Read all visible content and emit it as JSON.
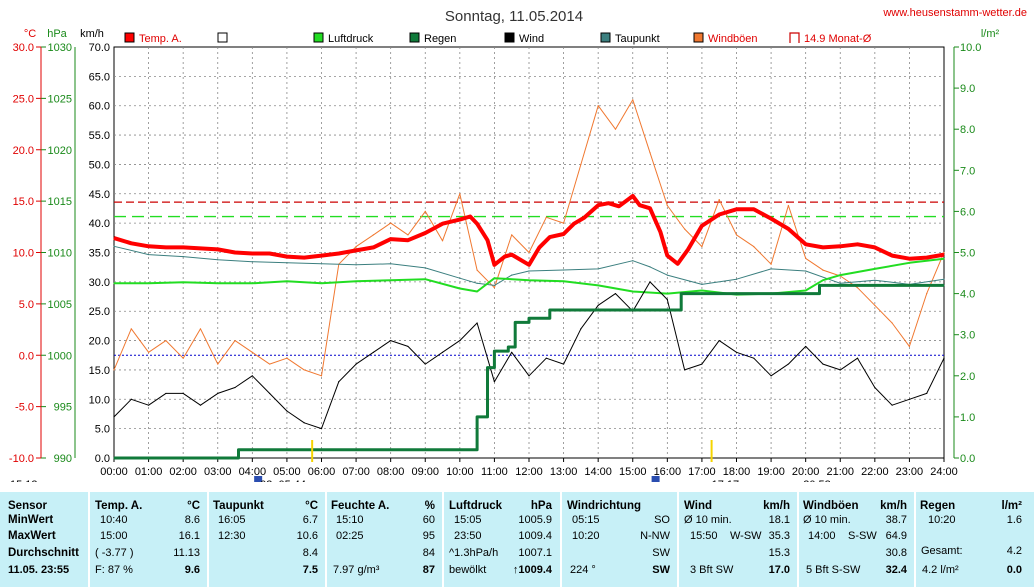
{
  "chart_data": {
    "type": "line",
    "title": "Sonntag, 11.05.2014",
    "site": "www.heusenstamm-wetter.de",
    "axis_units": {
      "temp": "°C",
      "pressure": "hPa",
      "wind": "km/h",
      "rain": "l/m²"
    },
    "temp_ticks": [
      "30.0",
      "25.0",
      "20.0",
      "15.0",
      "10.0",
      "5.0",
      "0.0",
      "-5.0",
      "-10.0"
    ],
    "pressure_ticks": [
      "1030",
      "1025",
      "1020",
      "1015",
      "1010",
      "1005",
      "1000",
      "995",
      "990"
    ],
    "wind_ticks": [
      "70.0",
      "65.0",
      "60.0",
      "55.0",
      "50.0",
      "45.0",
      "40.0",
      "35.0",
      "30.0",
      "25.0",
      "20.0",
      "15.0",
      "10.0",
      "5.0",
      "0.0"
    ],
    "rain_ticks": [
      "10.0",
      "9.0",
      "8.0",
      "7.0",
      "6.0",
      "5.0",
      "4.0",
      "3.0",
      "2.0",
      "1.0",
      "0.0"
    ],
    "x_ticks": [
      "00:00",
      "01:00",
      "02:00",
      "03:00",
      "04:00",
      "05:00",
      "06:00",
      "07:00",
      "08:00",
      "09:00",
      "10:00",
      "11:00",
      "12:00",
      "13:00",
      "14:00",
      "15:00",
      "16:00",
      "17:00",
      "18:00",
      "19:00",
      "20:00",
      "21:00",
      "22:00",
      "23:00",
      "24:00"
    ],
    "legend": [
      {
        "name": "Temp. A.",
        "color": "#ff0000"
      },
      {
        "name": "",
        "color": "#ffffff"
      },
      {
        "name": "Luftdruck",
        "color": "#22dd22"
      },
      {
        "name": "Regen",
        "color": "#107a3a"
      },
      {
        "name": "Wind",
        "color": "#000000"
      },
      {
        "name": "Taupunkt",
        "color": "#3b7f7f"
      },
      {
        "name": "Windböen",
        "color": "#f07830"
      },
      {
        "name": "14.9 Monat-Ø",
        "color": "#cc0000"
      }
    ],
    "sun_markers": [
      {
        "label": "03: 05:44",
        "hour": 5.73
      },
      {
        "label": "17:17",
        "hour": 17.28
      }
    ],
    "moon_markers": [
      {
        "label": "15:13",
        "hour": 0
      },
      {
        "label": "20:58",
        "hour": 20.97
      }
    ],
    "monthly_avg_temp": 14.9,
    "green_dashed_pressure": 1013.5,
    "freeze_line_temp": 0,
    "series": [
      {
        "name": "Temp. A.",
        "unit": "°C",
        "color": "#ff0000",
        "x": [
          0,
          0.5,
          1,
          1.5,
          2,
          2.5,
          3,
          3.5,
          4,
          4.5,
          5,
          5.5,
          6,
          6.5,
          7,
          7.5,
          8,
          8.5,
          9,
          9.5,
          10,
          10.3,
          10.5,
          10.8,
          11,
          11.3,
          11.5,
          12,
          12.3,
          12.6,
          13,
          13.3,
          13.6,
          14,
          14.3,
          14.6,
          15,
          15.2,
          15.5,
          15.8,
          16,
          16.3,
          16.6,
          17,
          17.5,
          18,
          18.5,
          19,
          19.5,
          20,
          20.5,
          21,
          21.5,
          22,
          22.5,
          23,
          23.5,
          24
        ],
        "y": [
          11.4,
          10.9,
          10.6,
          10.5,
          10.5,
          10.4,
          10.3,
          10.0,
          9.9,
          9.9,
          9.6,
          9.5,
          9.7,
          9.9,
          10.2,
          10.5,
          11.3,
          11.2,
          11.9,
          12.8,
          13.2,
          13.5,
          12.8,
          11.2,
          8.8,
          9.6,
          9.8,
          8.8,
          10.5,
          11.5,
          11.8,
          12.8,
          13.4,
          14.6,
          14.8,
          14.5,
          15.5,
          14.6,
          14.3,
          12.0,
          9.7,
          8.9,
          10.3,
          12.6,
          13.7,
          14.2,
          14.2,
          13.3,
          12.3,
          10.8,
          10.5,
          10.6,
          10.8,
          10.5,
          9.7,
          9.4,
          9.5,
          9.8
        ]
      },
      {
        "name": "Taupunkt",
        "unit": "°C",
        "color": "#3b7f7f",
        "x": [
          0,
          1,
          2,
          3,
          4,
          5,
          6,
          7,
          8,
          9,
          10,
          10.5,
          11,
          11.5,
          12,
          13,
          14,
          15,
          15.5,
          16,
          17,
          18,
          19,
          20,
          21,
          22,
          23,
          24
        ],
        "y": [
          10.6,
          9.8,
          9.6,
          9.3,
          9.1,
          9.0,
          8.9,
          8.8,
          8.9,
          8.5,
          7.5,
          7.0,
          6.8,
          7.8,
          8.2,
          8.3,
          8.4,
          9.2,
          8.6,
          7.8,
          6.9,
          7.4,
          8.4,
          8.2,
          7.0,
          7.3,
          6.9,
          7.4
        ]
      },
      {
        "name": "Luftdruck",
        "unit": "hPa",
        "color": "#22dd22",
        "x": [
          0,
          1,
          2,
          3,
          4,
          5,
          6,
          7,
          8,
          9,
          10,
          10.5,
          11,
          12,
          13,
          14,
          15,
          16,
          17,
          18,
          19,
          20,
          20.5,
          21,
          22,
          23,
          24
        ],
        "y": [
          1007.0,
          1007.0,
          1007.1,
          1007.0,
          1007.0,
          1007.2,
          1007.0,
          1007.2,
          1007.3,
          1007.4,
          1006.5,
          1006.2,
          1007.5,
          1007.3,
          1007.2,
          1006.8,
          1006.2,
          1006.0,
          1006.3,
          1005.9,
          1006.0,
          1006.3,
          1007.3,
          1007.8,
          1008.4,
          1009.0,
          1009.4
        ]
      },
      {
        "name": "Regen",
        "unit": "l/m²",
        "color": "#107a3a",
        "x": [
          0,
          3.55,
          3.6,
          10.4,
          10.5,
          10.8,
          11.0,
          11.4,
          11.6,
          12.0,
          12.6,
          16.2,
          16.4,
          20.3,
          20.4,
          24
        ],
        "y": [
          0,
          0,
          0.2,
          0.2,
          1.0,
          2.2,
          2.6,
          2.7,
          3.3,
          3.4,
          3.6,
          3.6,
          4.0,
          4.0,
          4.2,
          4.2
        ]
      },
      {
        "name": "Wind",
        "unit": "km/h",
        "color": "#000000",
        "x": [
          0,
          0.5,
          1,
          1.5,
          2,
          2.5,
          3,
          3.5,
          4,
          4.5,
          5,
          5.5,
          6,
          6.5,
          7,
          7.5,
          8,
          8.5,
          9,
          9.5,
          10,
          10.5,
          11,
          11.5,
          12,
          12.5,
          13,
          13.5,
          14,
          14.5,
          15,
          15.5,
          16,
          16.5,
          17,
          17.5,
          18,
          18.5,
          19,
          19.5,
          20,
          20.5,
          21,
          21.5,
          22,
          22.5,
          23,
          23.5,
          24
        ],
        "y": [
          7,
          10,
          9,
          11,
          11,
          9,
          11,
          12,
          14,
          11,
          8,
          6,
          5,
          13,
          16,
          18,
          20,
          19,
          16,
          18,
          20,
          23,
          13,
          18,
          14,
          17,
          16,
          22,
          26,
          28,
          25,
          30,
          27,
          15,
          16,
          20,
          18,
          17,
          14,
          16,
          19,
          16,
          15,
          17,
          12,
          9,
          10,
          11,
          17
        ]
      },
      {
        "name": "Windböen",
        "unit": "km/h",
        "color": "#f07830",
        "x": [
          0,
          0.5,
          1,
          1.5,
          2,
          2.5,
          3,
          3.5,
          4,
          4.5,
          5,
          5.5,
          6,
          6.5,
          7,
          7.5,
          8,
          8.5,
          9,
          9.5,
          10,
          10.5,
          11,
          11.5,
          12,
          12.5,
          13,
          13.5,
          14,
          14.5,
          15,
          15.5,
          16,
          16.5,
          17,
          17.5,
          18,
          18.5,
          19,
          19.5,
          20,
          20.5,
          21,
          21.5,
          22,
          22.5,
          23,
          23.5,
          24
        ],
        "y": [
          15,
          22,
          18,
          20,
          17,
          22,
          16,
          20,
          18,
          16,
          17,
          15,
          14,
          33,
          36,
          38,
          40,
          38,
          42,
          37,
          45,
          32,
          29,
          38,
          35,
          41,
          40,
          50,
          60,
          56,
          61,
          52,
          43,
          39,
          36,
          44,
          38,
          36,
          33,
          43,
          34,
          32,
          31,
          29,
          26,
          23,
          19,
          28,
          35
        ]
      }
    ]
  },
  "stats": {
    "date_label": "11.05. 23:55",
    "labels": [
      "Sensor",
      "MinWert",
      "MaxWert",
      "Durchschnitt"
    ],
    "temp": {
      "header": "Temp. A.",
      "unit": "°C",
      "min_time": "10:40",
      "min": "8.6",
      "max_time": "15:00",
      "max": "16.1",
      "avg_note": "( -3.77 )",
      "avg": "11.13",
      "cur_note": "F: 87 %",
      "cur": "9.6"
    },
    "dew": {
      "header": "Taupunkt",
      "unit": "°C",
      "min_time": "16:05",
      "min": "6.7",
      "max_time": "12:30",
      "max": "10.6",
      "avg": "8.4",
      "cur": "7.5"
    },
    "hum": {
      "header": "Feuchte A.",
      "unit": "%",
      "min_time": "15:10",
      "min": "60",
      "max_time": "02:25",
      "max": "95",
      "avg": "84",
      "cur_note": "7.97 g/m³",
      "cur": "87"
    },
    "press": {
      "header": "Luftdruck",
      "unit": "hPa",
      "min_time": "15:05",
      "min": "1005.9",
      "max_time": "23:50",
      "max": "1009.4",
      "avg_note": "^1.3hPa/h",
      "avg": "1007.1",
      "cur_note": "bewölkt",
      "cur": "↑1009.4"
    },
    "dir": {
      "header": "Windrichtung",
      "min_time": "05:15",
      "min": "SO",
      "max_time": "10:20",
      "max": "N-NW",
      "avg": "SW",
      "cur_note": "224 °",
      "cur": "SW"
    },
    "wind": {
      "header": "Wind",
      "unit": "km/h",
      "min_note": "Ø 10 min.",
      "min": "18.1",
      "max_time": "15:50",
      "max_dir": "W-SW",
      "max": "35.3",
      "avg": "15.3",
      "cur_note": "3 Bft SW",
      "cur": "17.0"
    },
    "gust": {
      "header": "Windböen",
      "unit": "km/h",
      "min_note": "Ø 10 min.",
      "min": "38.7",
      "max_time": "14:00",
      "max_dir": "S-SW",
      "max": "64.9",
      "avg": "30.8",
      "cur_note": "5 Bft S-SW",
      "cur": "32.4"
    },
    "rain": {
      "header": "Regen",
      "unit": "l/m²",
      "min_time": "10:20",
      "min": "1.6",
      "max_label": "Gesamt:",
      "max": "4.2",
      "cur_note": "4.2 l/m²",
      "cur": "0.0"
    }
  }
}
